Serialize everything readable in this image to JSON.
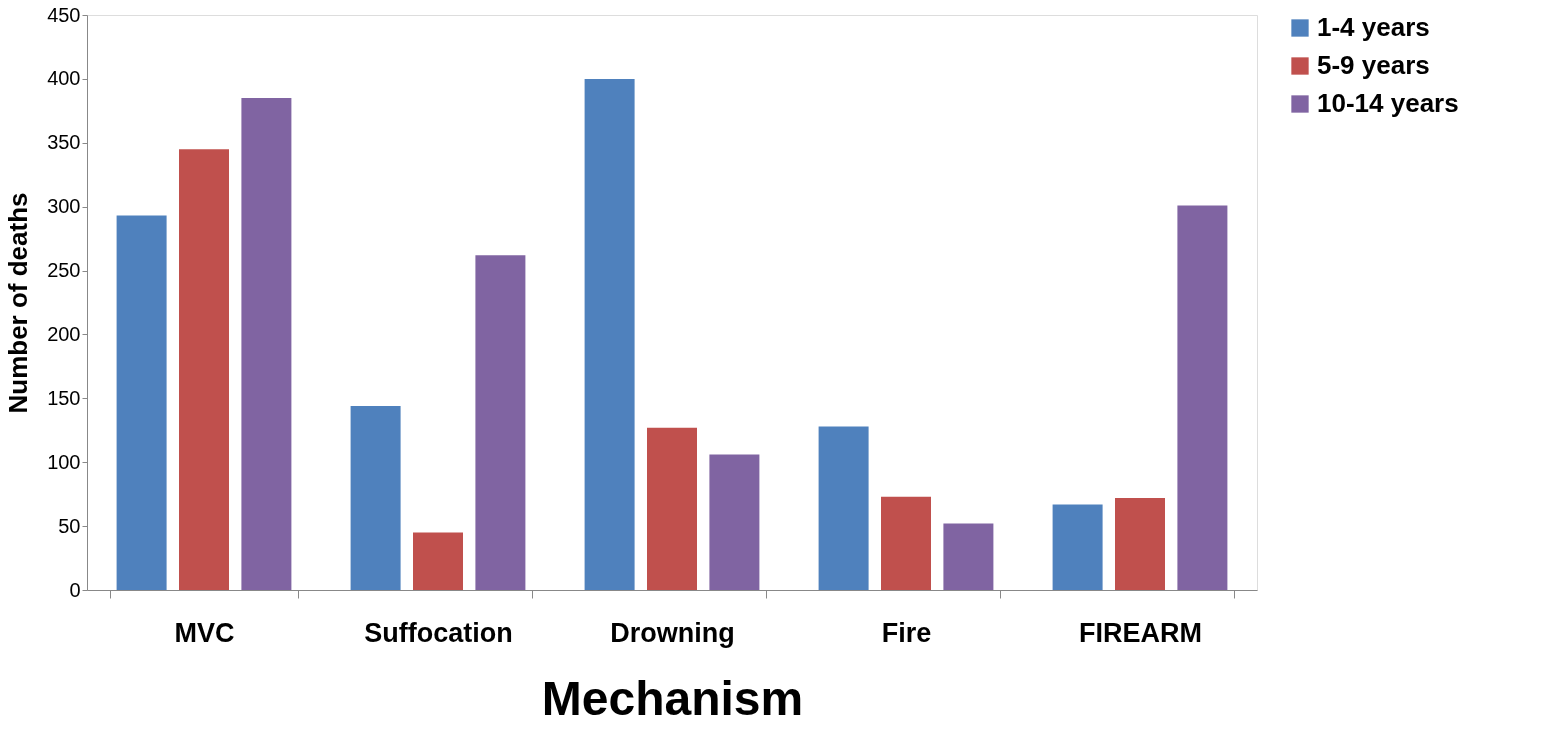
{
  "chart_data": {
    "type": "bar",
    "xlabel": "Mechanism",
    "ylabel": "Number of deaths",
    "categories": [
      "MVC",
      "Suffocation",
      "Drowning",
      "Fire",
      "FIREARM"
    ],
    "series": [
      {
        "name": "1-4 years",
        "color": "#4f81bd",
        "values": [
          293,
          144,
          400,
          128,
          67
        ]
      },
      {
        "name": "5-9 years",
        "color": "#c0504d",
        "values": [
          345,
          45,
          127,
          73,
          72
        ]
      },
      {
        "name": "10-14 years",
        "color": "#8064a2",
        "values": [
          385,
          262,
          106,
          52,
          301
        ]
      }
    ],
    "ylim": [
      0,
      450
    ],
    "yticks": [
      0,
      50,
      100,
      150,
      200,
      250,
      300,
      350,
      400,
      450
    ],
    "grid": false,
    "legend": "right"
  }
}
